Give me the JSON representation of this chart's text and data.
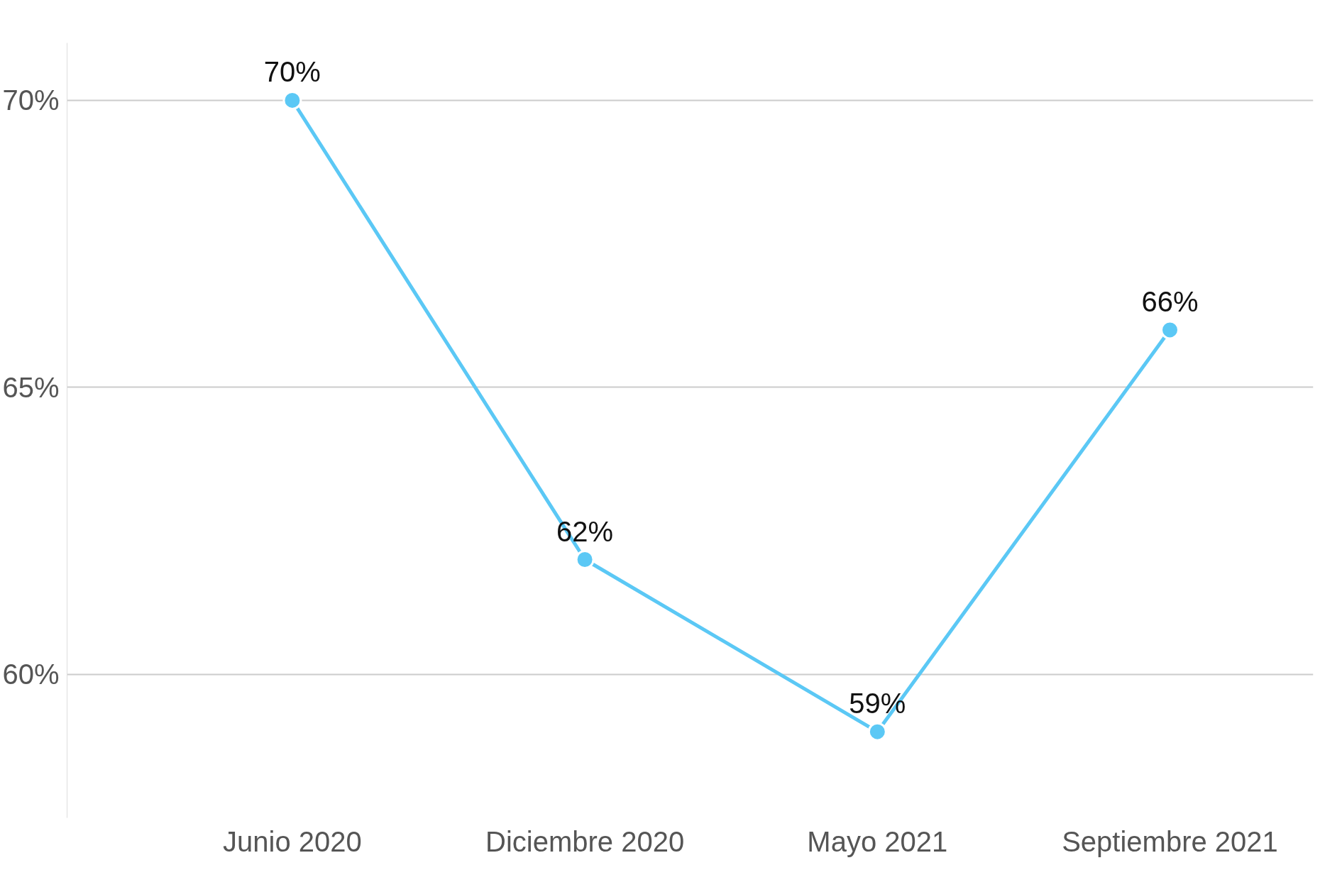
{
  "chart_data": {
    "type": "line",
    "categories": [
      "Junio 2020",
      "Diciembre 2020",
      "Mayo 2021",
      "Septiembre 2021"
    ],
    "series": [
      {
        "color": "#5bc8f5",
        "values": [
          70,
          62,
          59,
          66
        ]
      }
    ],
    "ylim": [
      57.5,
      71
    ],
    "yticks": [
      {
        "value": 60,
        "label": "60%"
      },
      {
        "value": 65,
        "label": "65%"
      },
      {
        "value": 70,
        "label": "70%"
      }
    ],
    "value_labels": [
      "70%",
      "62%",
      "59%",
      "66%"
    ],
    "grid": "y",
    "marker": "circle",
    "line_style": "solid"
  }
}
